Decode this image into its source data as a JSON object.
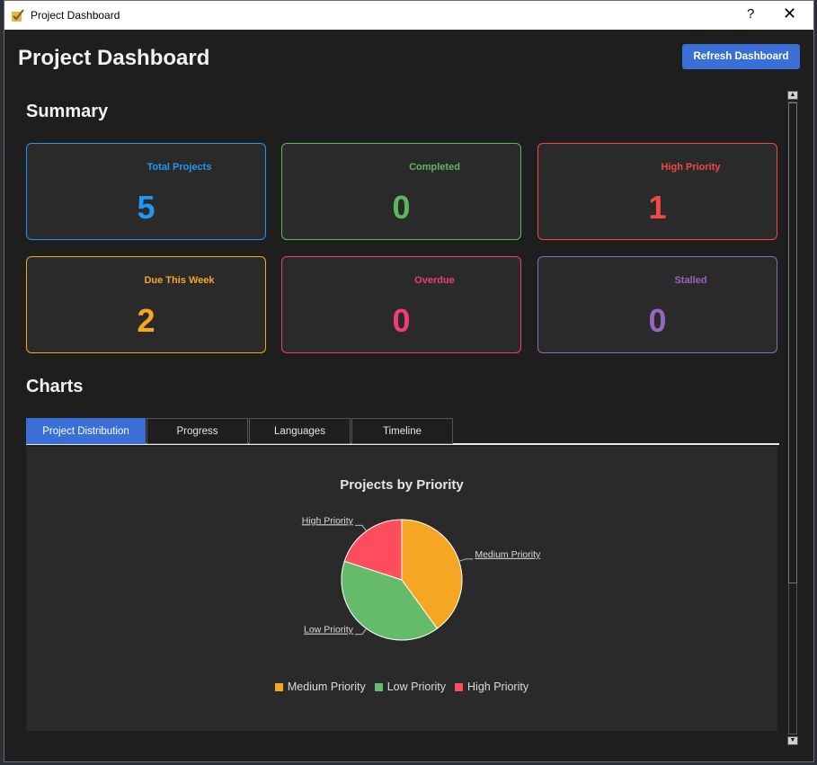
{
  "window": {
    "title": "Project Dashboard",
    "help_label": "?",
    "close_label": "✕"
  },
  "header": {
    "title": "Project Dashboard",
    "refresh_label": "Refresh Dashboard"
  },
  "summary": {
    "title": "Summary",
    "cards": [
      {
        "label": "Total Projects",
        "value": "5",
        "color": "#2196f3"
      },
      {
        "label": "Completed",
        "value": "0",
        "color": "#5cb85c"
      },
      {
        "label": "High Priority",
        "value": "1",
        "color": "#f44747"
      },
      {
        "label": "Due This Week",
        "value": "2",
        "color": "#f5a623"
      },
      {
        "label": "Overdue",
        "value": "0",
        "color": "#ef3d7a"
      },
      {
        "label": "Stalled",
        "value": "0",
        "color": "#9467bd"
      }
    ]
  },
  "charts": {
    "title": "Charts",
    "tabs": [
      "Project Distribution",
      "Progress",
      "Languages",
      "Timeline"
    ],
    "active_tab": "Project Distribution"
  },
  "chart_data": {
    "type": "pie",
    "title": "Projects by Priority",
    "categories": [
      "Medium Priority",
      "Low Priority",
      "High Priority"
    ],
    "values": [
      2,
      2,
      1
    ],
    "colors": [
      "#f5a623",
      "#66bb6a",
      "#ff4d5e"
    ],
    "legend": "bottom"
  }
}
